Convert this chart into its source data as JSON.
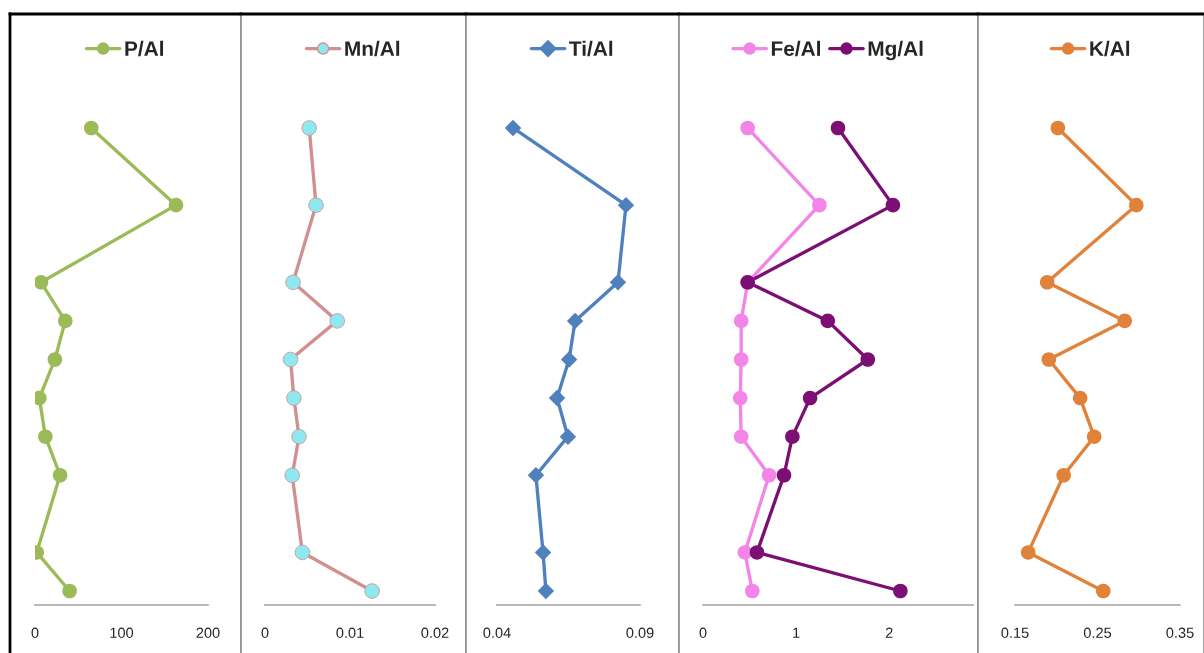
{
  "chart_data": [
    {
      "type": "line",
      "orientation": "horizontal",
      "categories": [
        null,
        null,
        null,
        null,
        null,
        null,
        null,
        null,
        null,
        null,
        null,
        null,
        null
      ],
      "marker": "circle",
      "legend": "top",
      "tick_labels": "x",
      "grid": false,
      "xlim": [
        0,
        200
      ],
      "xticks": [
        0,
        100,
        200
      ],
      "series": [
        {
          "name": "P/Al",
          "color": "#9bbb59",
          "values": [
            65,
            null,
            163,
            null,
            7,
            35,
            23,
            5,
            12,
            29,
            null,
            2,
            40
          ]
        }
      ]
    },
    {
      "type": "line",
      "orientation": "horizontal",
      "categories": [
        null,
        null,
        null,
        null,
        null,
        null,
        null,
        null,
        null,
        null,
        null,
        null,
        null
      ],
      "marker": "circle",
      "legend": "top",
      "tick_labels": "x",
      "grid": false,
      "xlim": [
        0,
        0.02
      ],
      "xticks": [
        0,
        0.01,
        0.02
      ],
      "series": [
        {
          "name": "Mn/Al",
          "color": "#d09090",
          "colors": [
            "#8ee8f0",
            "#8ee8f0",
            "#8ee8f0",
            "#8ee8f0",
            "#8ee8f0",
            "#8ee8f0",
            "#8ee8f0",
            "#8ee8f0",
            "#8ee8f0",
            "#8ee8f0",
            "#8ee8f0",
            "#8ee8f0",
            "#8ee8f0"
          ],
          "values": [
            0.0052,
            null,
            0.006,
            null,
            0.0033,
            0.0085,
            0.003,
            0.0034,
            0.004,
            0.0032,
            null,
            0.0044,
            0.0126
          ]
        }
      ]
    },
    {
      "type": "line",
      "orientation": "horizontal",
      "categories": [
        null,
        null,
        null,
        null,
        null,
        null,
        null,
        null,
        null,
        null,
        null,
        null,
        null
      ],
      "marker": "diamond",
      "legend": "top",
      "tick_labels": "x",
      "grid": false,
      "xlim": [
        0.04,
        0.09
      ],
      "xticks": [
        0.04,
        0.09
      ],
      "series": [
        {
          "name": "Ti/Al",
          "color": "#4f81bd",
          "values": [
            0.0456,
            null,
            0.0851,
            null,
            0.0823,
            0.0673,
            0.0652,
            0.061,
            0.0648,
            0.0536,
            null,
            0.0561,
            0.0571
          ]
        }
      ]
    },
    {
      "type": "line",
      "orientation": "horizontal",
      "categories": [
        null,
        null,
        null,
        null,
        null,
        null,
        null,
        null,
        null,
        null,
        null,
        null,
        null
      ],
      "marker": "circle",
      "legend": "top",
      "tick_labels": "x",
      "grid": false,
      "xlim": [
        0,
        2.9
      ],
      "xticks": [
        0,
        1,
        2
      ],
      "series": [
        {
          "name": "Fe/Al",
          "color": "#f384e8",
          "values": [
            0.48,
            null,
            1.25,
            null,
            0.48,
            0.41,
            0.41,
            0.4,
            0.41,
            0.71,
            null,
            0.45,
            0.53
          ]
        },
        {
          "name": "Mg/Al",
          "color": "#7b0f73",
          "values": [
            1.45,
            null,
            2.04,
            null,
            0.48,
            1.34,
            1.77,
            1.15,
            0.96,
            0.87,
            null,
            0.58,
            2.12
          ]
        }
      ]
    },
    {
      "type": "line",
      "orientation": "horizontal",
      "categories": [
        null,
        null,
        null,
        null,
        null,
        null,
        null,
        null,
        null,
        null,
        null,
        null,
        null
      ],
      "marker": "circle",
      "legend": "top",
      "tick_labels": "x",
      "grid": false,
      "xlim": [
        0.15,
        0.35
      ],
      "xticks": [
        0.15,
        0.25,
        0.35
      ],
      "series": [
        {
          "name": "K/Al",
          "color": "#e0823a",
          "values": [
            0.202,
            null,
            0.297,
            null,
            0.189,
            0.283,
            0.191,
            0.229,
            0.246,
            0.209,
            null,
            0.166,
            0.257
          ]
        }
      ]
    }
  ]
}
